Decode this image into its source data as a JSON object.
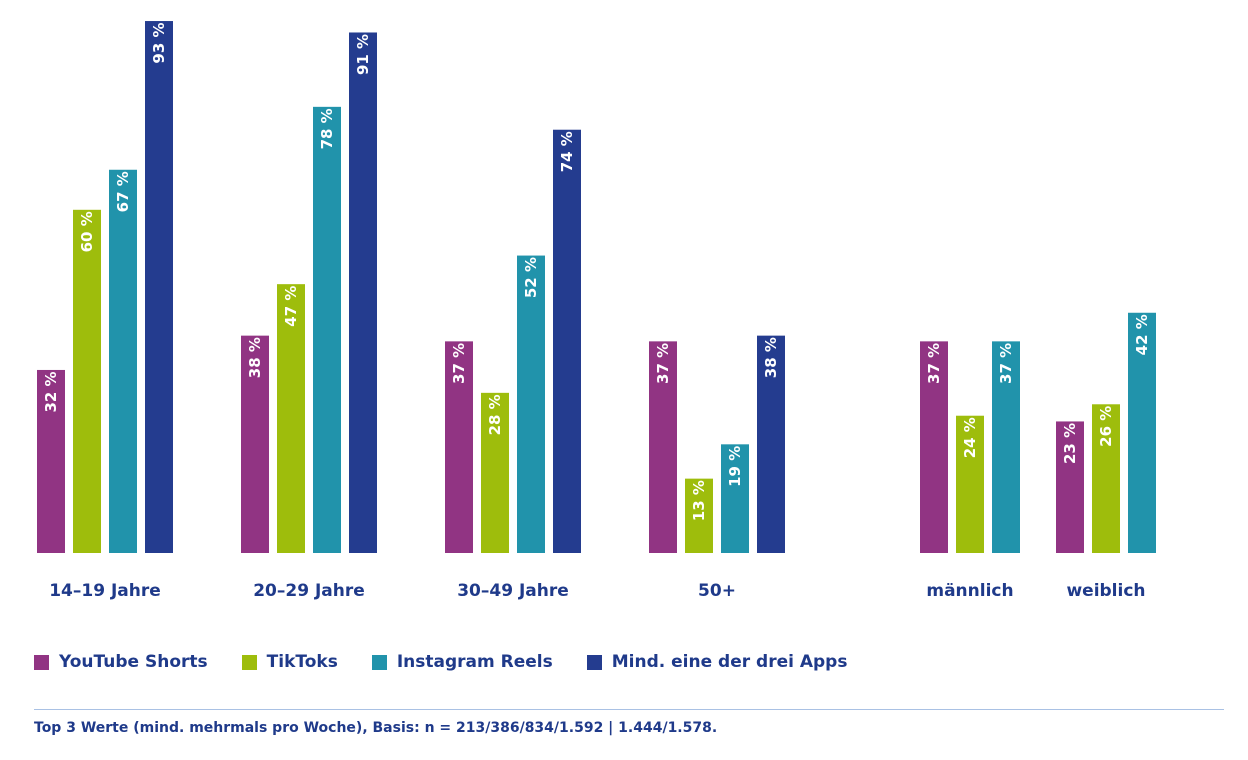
{
  "chart_data": {
    "type": "bar",
    "orientation": "vertical",
    "groups": [
      {
        "label": "14–19 Jahre",
        "values": [
          32,
          60,
          67,
          93
        ]
      },
      {
        "label": "20–29 Jahre",
        "values": [
          38,
          47,
          78,
          91
        ]
      },
      {
        "label": "30–49 Jahre",
        "values": [
          37,
          28,
          52,
          74
        ]
      },
      {
        "label": "50+",
        "values": [
          37,
          13,
          19,
          38
        ]
      },
      {
        "label": "männlich",
        "values": [
          37,
          24,
          37
        ]
      },
      {
        "label": "weiblich",
        "values": [
          23,
          26,
          42
        ]
      }
    ],
    "series": [
      {
        "name": "YouTube Shorts",
        "color": "#913483"
      },
      {
        "name": "TikToks",
        "color": "#9ebd0c"
      },
      {
        "name": "Instagram Reels",
        "color": "#2193ab"
      },
      {
        "name": "Mind. eine der drei Apps",
        "color": "#243c8f"
      }
    ],
    "value_suffix": " %",
    "ylim": [
      0,
      100
    ],
    "title": "",
    "xlabel": "",
    "ylabel": ""
  },
  "footnote": "Top 3 Werte (mind. mehrmals pro Woche), Basis: n = 213/386/834/1.592 | 1.444/1.578.",
  "label_color": "#1f3a8a"
}
